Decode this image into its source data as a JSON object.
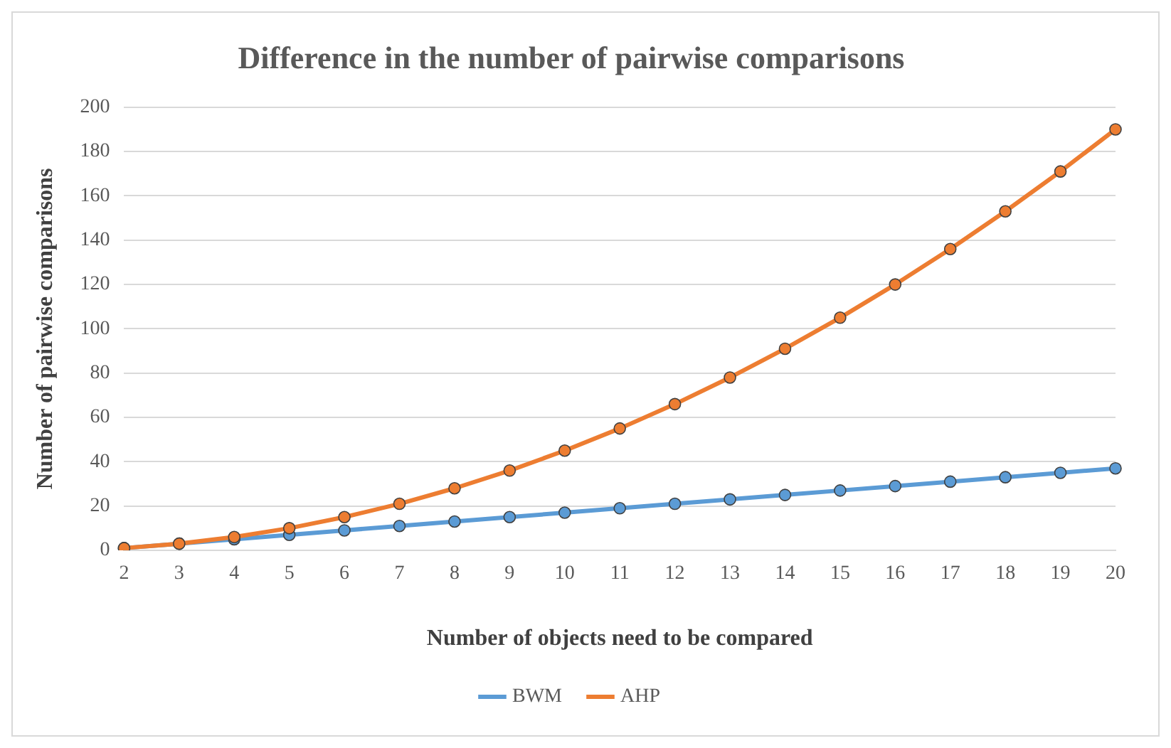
{
  "chart_data": {
    "type": "line",
    "title": "Difference in the number of pairwise comparisons",
    "xlabel": "Number of objects need to be compared",
    "ylabel": "Number of pairwise comparisons",
    "categories": [
      "2",
      "3",
      "4",
      "5",
      "6",
      "7",
      "8",
      "9",
      "10",
      "11",
      "12",
      "13",
      "14",
      "15",
      "16",
      "17",
      "18",
      "19",
      "20"
    ],
    "series": [
      {
        "name": "BWM",
        "color": "#5b9bd5",
        "values": [
          1,
          3,
          5,
          7,
          9,
          11,
          13,
          15,
          17,
          19,
          21,
          23,
          25,
          27,
          29,
          31,
          33,
          35,
          37
        ]
      },
      {
        "name": "AHP",
        "color": "#ed7d31",
        "values": [
          1,
          3,
          6,
          10,
          15,
          21,
          28,
          36,
          45,
          55,
          66,
          78,
          91,
          105,
          120,
          136,
          153,
          171,
          190
        ]
      }
    ],
    "ylim": [
      0,
      200
    ],
    "yticks": [
      0,
      20,
      40,
      60,
      80,
      100,
      120,
      140,
      160,
      180,
      200
    ],
    "grid": "y",
    "legend": "bottom",
    "marker": "circle",
    "line_style": "solid"
  }
}
